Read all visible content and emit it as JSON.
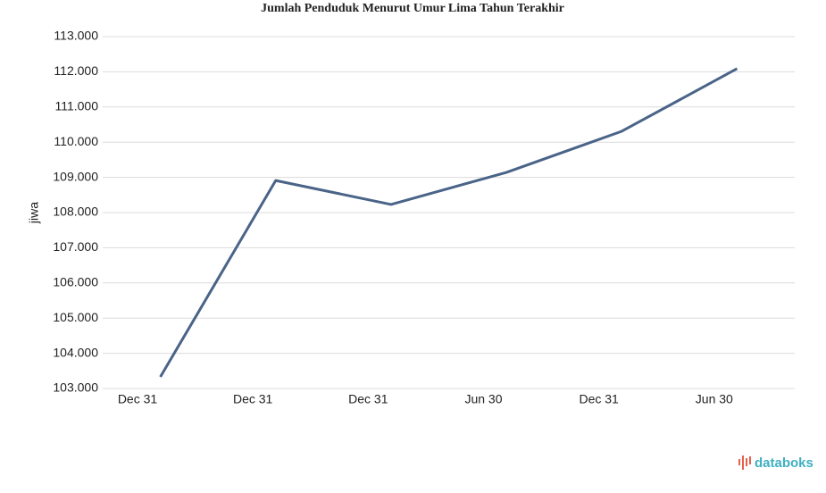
{
  "chart_data": {
    "type": "line",
    "title": "Jumlah Penduduk Menurut Umur Lima Tahun Terakhir",
    "y_label": "jiwa",
    "brand": "databoks",
    "categories": [
      "Dec 31",
      "Dec 31",
      "Dec 31",
      "Jun 30",
      "Dec 31",
      "Jun 30"
    ],
    "series": [
      {
        "name": "jiwa",
        "color": "#4a6488",
        "values": [
          103330,
          108910,
          108230,
          109140,
          110310,
          112090
        ]
      }
    ],
    "ylim": [
      103000,
      113000
    ],
    "yticks": [
      {
        "value": 103000,
        "label": "103.000"
      },
      {
        "value": 104000,
        "label": "104.000"
      },
      {
        "value": 105000,
        "label": "105.000"
      },
      {
        "value": 106000,
        "label": "106.000"
      },
      {
        "value": 107000,
        "label": "107.000"
      },
      {
        "value": 108000,
        "label": "108.000"
      },
      {
        "value": 109000,
        "label": "109.000"
      },
      {
        "value": 110000,
        "label": "110.000"
      },
      {
        "value": 111000,
        "label": "111.000"
      },
      {
        "value": 112000,
        "label": "112.000"
      },
      {
        "value": 113000,
        "label": "113.000"
      }
    ],
    "grid": true
  }
}
